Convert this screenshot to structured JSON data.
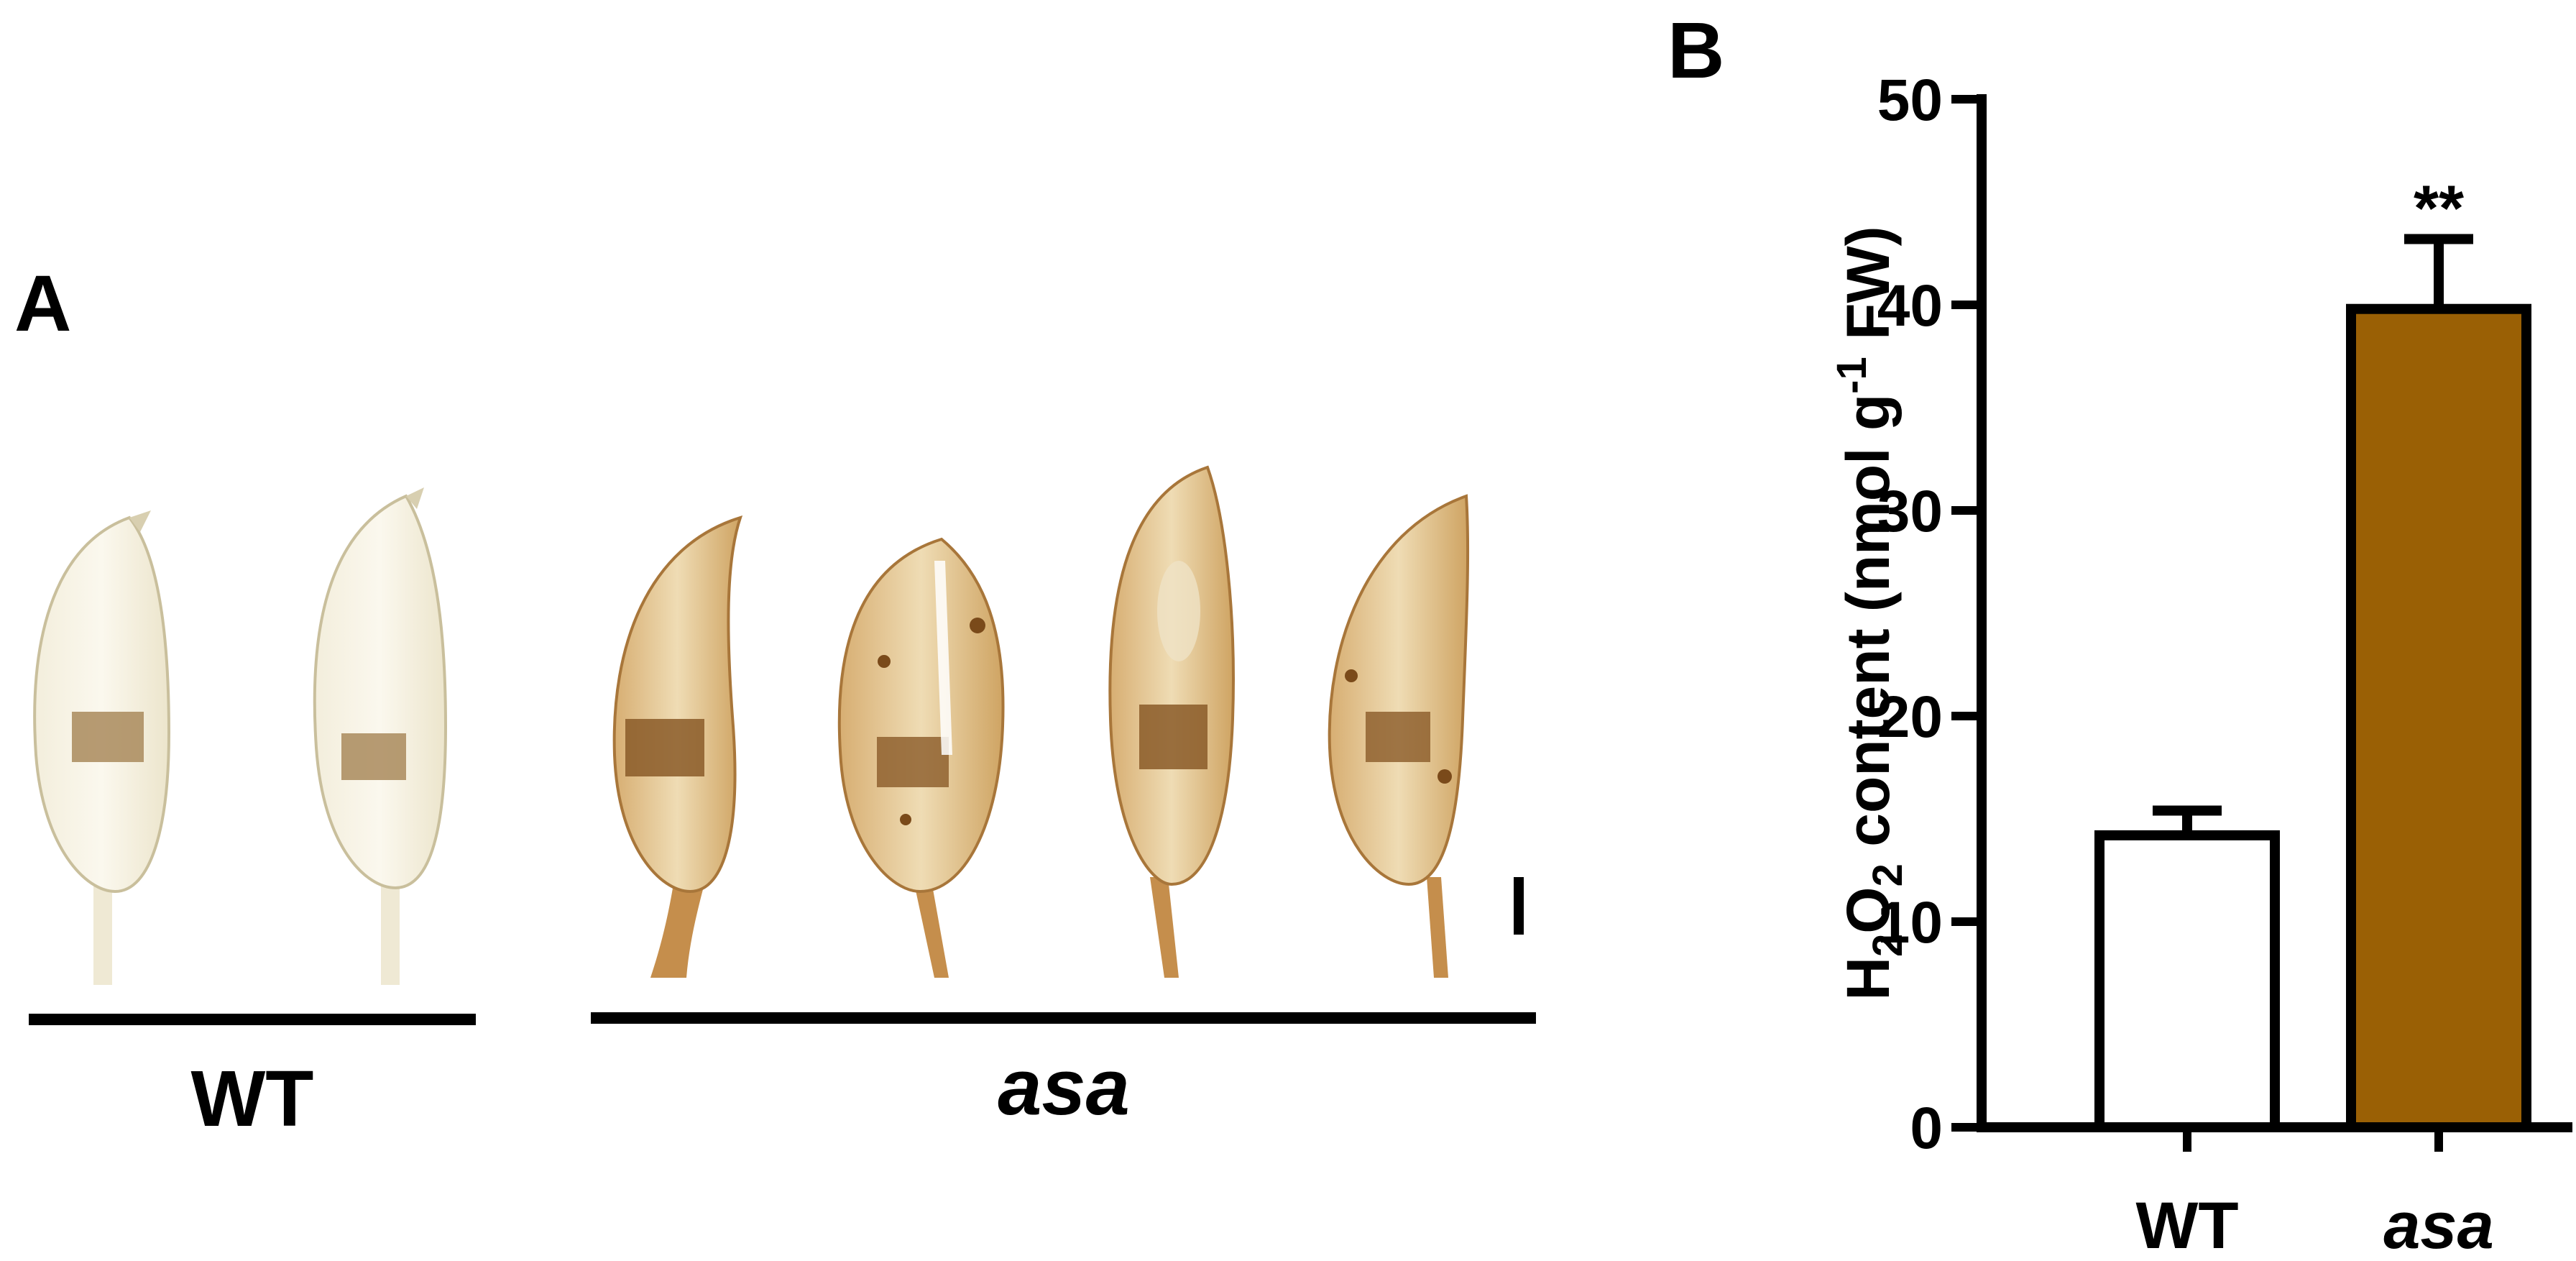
{
  "panels": {
    "a_label": "A",
    "b_label": "B"
  },
  "photo": {
    "groups": [
      {
        "label": "WT",
        "italic": false,
        "specimens": 2
      },
      {
        "label": "asa",
        "italic": true,
        "specimens": 4
      }
    ]
  },
  "chart_data": {
    "type": "bar",
    "categories": [
      "WT",
      "asa"
    ],
    "category_italic": [
      false,
      true
    ],
    "values": [
      14.2,
      39.8
    ],
    "errors": [
      1.2,
      3.4
    ],
    "significance": [
      "",
      "**"
    ],
    "bar_colors": [
      "#ffffff",
      "#9a6005"
    ],
    "ylabel": {
      "h": "H",
      "sub1": "2",
      "o": "O",
      "sub2": "2",
      "rest": " content (nmol g",
      "sup": "-1",
      "end": " FW)"
    },
    "ylim": [
      0,
      50
    ],
    "yticks": [
      0,
      10,
      20,
      30,
      40,
      50
    ],
    "grid": false
  }
}
